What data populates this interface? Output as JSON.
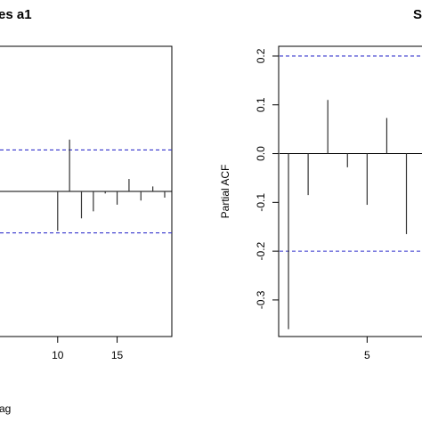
{
  "chart_data": [
    {
      "type": "bar",
      "title_fragment": "es  a1",
      "xlabel_fragment": "ag",
      "x_ticks": [
        10,
        15
      ],
      "y_ticks": [],
      "xlim": [
        5,
        19.6
      ],
      "ylim": [
        -0.35,
        0.35
      ],
      "ci": 0.1,
      "x": [
        10,
        11,
        12,
        13,
        14,
        15,
        16,
        17,
        18,
        19
      ],
      "values": [
        -0.095,
        0.125,
        -0.065,
        -0.048,
        -0.005,
        -0.032,
        0.03,
        -0.022,
        0.012,
        -0.015
      ],
      "colors": {
        "bar": "#333333",
        "ci": "#3333cc",
        "axis": "#000000"
      }
    },
    {
      "type": "bar",
      "title_fragment": "S",
      "ylabel": "Partial ACF",
      "x_ticks": [
        5
      ],
      "y_ticks": [
        0.2,
        0.1,
        0.0,
        -0.1,
        -0.2,
        -0.3
      ],
      "y_tick_labels": [
        "0.2",
        "0.1",
        "0.0",
        "-0.1",
        "-0.2",
        "-0.3"
      ],
      "xlim": [
        0.5,
        8.2
      ],
      "ylim": [
        -0.375,
        0.22
      ],
      "ci": 0.2,
      "x": [
        1,
        2,
        3,
        4,
        5,
        6,
        7
      ],
      "values": [
        -0.36,
        -0.085,
        0.11,
        -0.028,
        -0.105,
        0.073,
        -0.165
      ],
      "colors": {
        "bar": "#333333",
        "ci": "#3333cc",
        "axis": "#000000"
      }
    }
  ]
}
